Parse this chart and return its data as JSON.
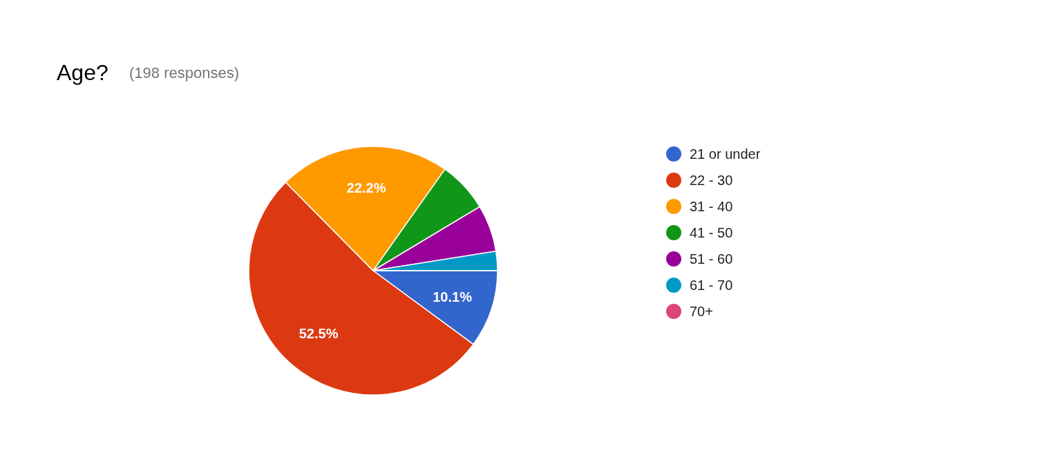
{
  "chart_data": {
    "type": "pie",
    "title": "Age?",
    "subtitle": "(198 responses)",
    "categories": [
      "21 or under",
      "22 - 30",
      "31 - 40",
      "41 - 50",
      "51 - 60",
      "61 - 70",
      "70+"
    ],
    "values": [
      10.1,
      52.5,
      22.2,
      6.6,
      6.1,
      2.5,
      0
    ],
    "colors": [
      "#3366cc",
      "#dc3912",
      "#ff9900",
      "#109618",
      "#990099",
      "#0099c6",
      "#dd4477"
    ],
    "value_labels": [
      "10.1%",
      "52.5%",
      "22.2%",
      null,
      null,
      null,
      null
    ],
    "legend": "right"
  }
}
